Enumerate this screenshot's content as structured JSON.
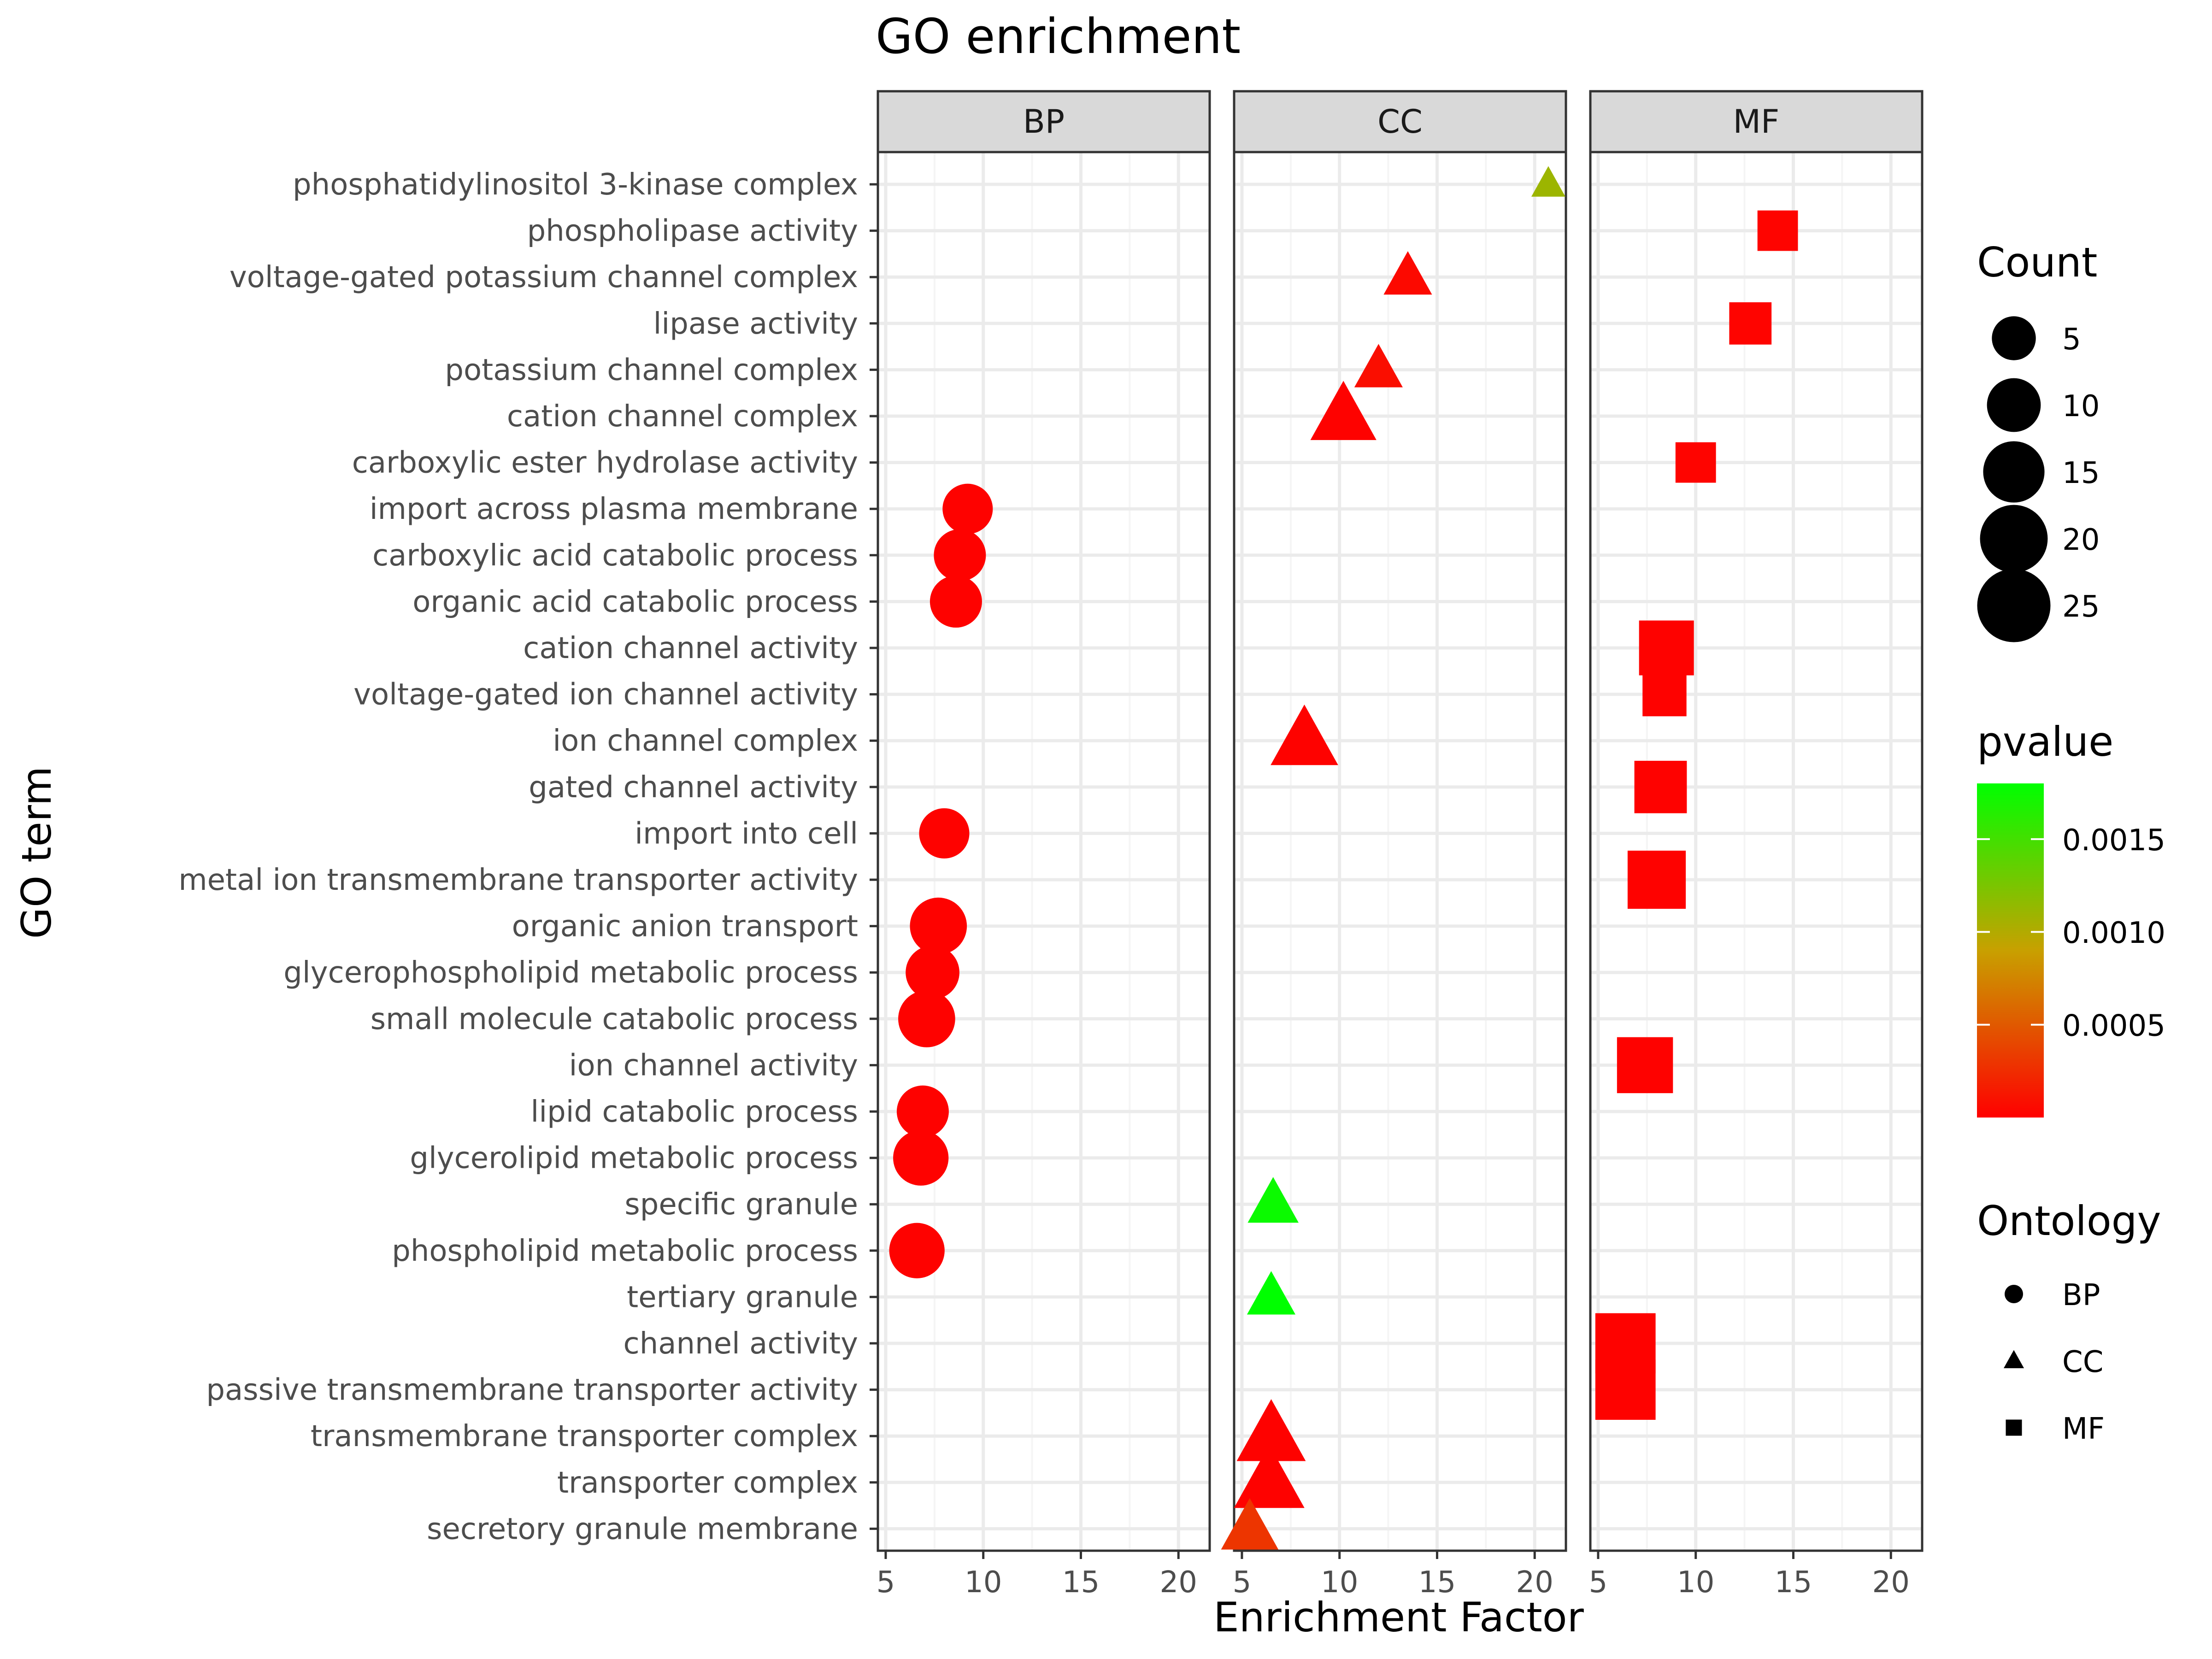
{
  "chart_data": {
    "type": "scatter",
    "title": "GO enrichment",
    "xlabel": "Enrichment Factor",
    "ylabel": "GO term",
    "xlim": [
      4.6,
      21.6
    ],
    "x_ticks": [
      5,
      10,
      15,
      20
    ],
    "panels": [
      "BP",
      "CC",
      "MF"
    ],
    "grid": true,
    "legend_position": "right",
    "terms": [
      "phosphatidylinositol 3-kinase complex",
      "phospholipase activity",
      "voltage-gated potassium channel complex",
      "lipase activity",
      "potassium channel complex",
      "cation channel complex",
      "carboxylic ester hydrolase activity",
      "import across plasma membrane",
      "carboxylic acid catabolic process",
      "organic acid catabolic process",
      "cation channel activity",
      "voltage-gated ion channel activity",
      "ion channel complex",
      "gated channel activity",
      "import into cell",
      "metal ion transmembrane transporter activity",
      "organic anion transport",
      "glycerophospholipid metabolic process",
      "small molecule catabolic process",
      "ion channel activity",
      "lipid catabolic process",
      "glycerolipid metabolic process",
      "specific granule",
      "phospholipid metabolic process",
      "tertiary granule",
      "channel activity",
      "passive transmembrane transporter activity",
      "transmembrane transporter complex",
      "transporter complex",
      "secretory granule membrane"
    ],
    "points": [
      {
        "term": "phosphatidylinositol 3-kinase complex",
        "ontology": "CC",
        "x": 20.7,
        "count": 1,
        "pvalue": 0.0011
      },
      {
        "term": "phospholipase activity",
        "ontology": "MF",
        "x": 14.2,
        "count": 6,
        "pvalue": 2e-05
      },
      {
        "term": "voltage-gated potassium channel complex",
        "ontology": "CC",
        "x": 13.5,
        "count": 5,
        "pvalue": 5e-05
      },
      {
        "term": "lipase activity",
        "ontology": "MF",
        "x": 12.8,
        "count": 7,
        "pvalue": 2e-05
      },
      {
        "term": "potassium channel complex",
        "ontology": "CC",
        "x": 12.0,
        "count": 5,
        "pvalue": 8e-05
      },
      {
        "term": "cation channel complex",
        "ontology": "CC",
        "x": 10.2,
        "count": 14,
        "pvalue": 1e-05
      },
      {
        "term": "carboxylic ester hydrolase activity",
        "ontology": "MF",
        "x": 10.0,
        "count": 6,
        "pvalue": 2e-05
      },
      {
        "term": "import across plasma membrane",
        "ontology": "BP",
        "x": 9.2,
        "count": 8,
        "pvalue": 1e-05
      },
      {
        "term": "carboxylic acid catabolic process",
        "ontology": "BP",
        "x": 8.8,
        "count": 9,
        "pvalue": 1e-05
      },
      {
        "term": "organic acid catabolic process",
        "ontology": "BP",
        "x": 8.6,
        "count": 9,
        "pvalue": 1e-05
      },
      {
        "term": "cation channel activity",
        "ontology": "MF",
        "x": 8.5,
        "count": 16,
        "pvalue": 1e-05
      },
      {
        "term": "voltage-gated ion channel activity",
        "ontology": "MF",
        "x": 8.4,
        "count": 8,
        "pvalue": 1e-05
      },
      {
        "term": "ion channel complex",
        "ontology": "CC",
        "x": 8.2,
        "count": 15,
        "pvalue": 1e-05
      },
      {
        "term": "gated channel activity",
        "ontology": "MF",
        "x": 8.2,
        "count": 14,
        "pvalue": 1e-05
      },
      {
        "term": "import into cell",
        "ontology": "BP",
        "x": 8.0,
        "count": 8,
        "pvalue": 1e-05
      },
      {
        "term": "metal ion transmembrane transporter activity",
        "ontology": "MF",
        "x": 8.0,
        "count": 19,
        "pvalue": 1e-05
      },
      {
        "term": "organic anion transport",
        "ontology": "BP",
        "x": 7.7,
        "count": 12,
        "pvalue": 1e-05
      },
      {
        "term": "glycerophospholipid metabolic process",
        "ontology": "BP",
        "x": 7.4,
        "count": 10,
        "pvalue": 1e-05
      },
      {
        "term": "small molecule catabolic process",
        "ontology": "BP",
        "x": 7.1,
        "count": 12,
        "pvalue": 1e-05
      },
      {
        "term": "ion channel activity",
        "ontology": "MF",
        "x": 7.4,
        "count": 17,
        "pvalue": 1e-05
      },
      {
        "term": "lipid catabolic process",
        "ontology": "BP",
        "x": 6.9,
        "count": 9,
        "pvalue": 1e-05
      },
      {
        "term": "glycerolipid metabolic process",
        "ontology": "BP",
        "x": 6.8,
        "count": 11,
        "pvalue": 1e-05
      },
      {
        "term": "specific granule",
        "ontology": "CC",
        "x": 6.6,
        "count": 6,
        "pvalue": 0.00175
      },
      {
        "term": "phospholipid metabolic process",
        "ontology": "BP",
        "x": 6.6,
        "count": 11,
        "pvalue": 1e-05
      },
      {
        "term": "tertiary granule",
        "ontology": "CC",
        "x": 6.5,
        "count": 5,
        "pvalue": 0.0018
      },
      {
        "term": "channel activity",
        "ontology": "MF",
        "x": 6.4,
        "count": 21,
        "pvalue": 1e-05
      },
      {
        "term": "passive transmembrane transporter activity",
        "ontology": "MF",
        "x": 6.4,
        "count": 21,
        "pvalue": 1e-05
      },
      {
        "term": "transmembrane transporter complex",
        "ontology": "CC",
        "x": 6.5,
        "count": 16,
        "pvalue": 1e-05
      },
      {
        "term": "transporter complex",
        "ontology": "CC",
        "x": 6.4,
        "count": 17,
        "pvalue": 1e-05
      },
      {
        "term": "secretory granule membrane",
        "ontology": "CC",
        "x": 5.4,
        "count": 9,
        "pvalue": 0.0003
      }
    ],
    "legend_count": {
      "title": "Count",
      "values": [
        5,
        10,
        15,
        20,
        25
      ],
      "labels": [
        "5",
        "10",
        "15",
        "20",
        "25"
      ]
    },
    "legend_pvalue": {
      "title": "pvalue",
      "ticks": [
        0.0005,
        0.001,
        0.0015
      ],
      "labels": [
        "0.0005",
        "0.0010",
        "0.0015"
      ],
      "min": 0.0,
      "max": 0.0018,
      "low_color": "#ff0000",
      "high_color": "#00ff00"
    },
    "legend_ontology": {
      "title": "Ontology",
      "items": [
        {
          "label": "BP",
          "shape": "circle"
        },
        {
          "label": "CC",
          "shape": "triangle"
        },
        {
          "label": "MF",
          "shape": "square"
        }
      ]
    }
  },
  "colors": {
    "panel_border": "#333333",
    "strip_fill": "#d9d9d9",
    "grid_major": "#ebebeb",
    "grid_minor": "#f5f5f5"
  }
}
